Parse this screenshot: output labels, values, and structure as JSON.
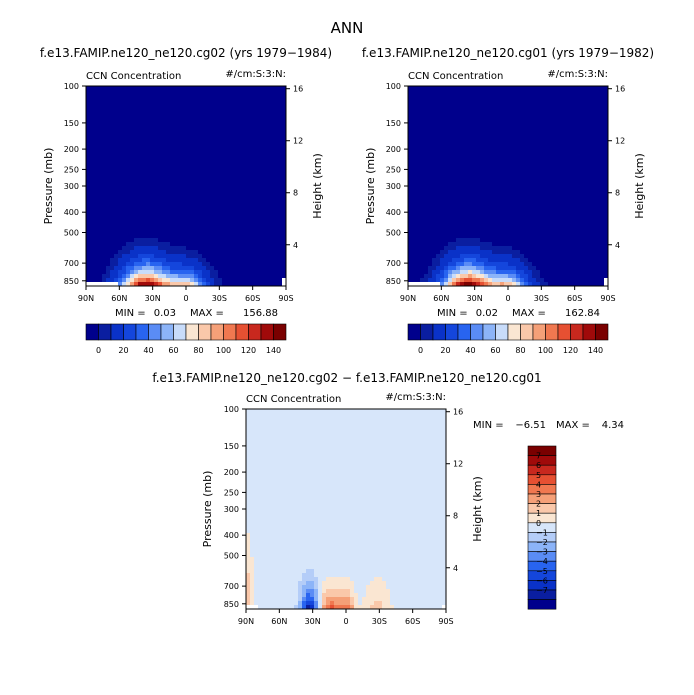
{
  "main_title": "ANN",
  "chart_data": [
    {
      "type": "heatmap",
      "title": "f.e13.FAMIP.ne120_ne120.cg02 (yrs 1979−1984)",
      "subtitle_left": "CCN Concentration",
      "subtitle_right": "#/cm:S:3:N:",
      "xlabel": "",
      "ylabel": "Pressure (mb)",
      "ylabel_right": "Height (km)",
      "x_ticks": [
        "90N",
        "60N",
        "30N",
        "0",
        "30S",
        "60S",
        "90S"
      ],
      "y_ticks": [
        "100",
        "150",
        "200",
        "250",
        "300",
        "400",
        "500",
        "700",
        "850"
      ],
      "y_ticks_right": [
        "16",
        "12",
        "8",
        "4"
      ],
      "stats": {
        "min_label": "MIN =",
        "min": "0.03",
        "max_label": "MAX =",
        "max": "156.88"
      },
      "colorbar_ticks": [
        "0",
        "20",
        "40",
        "60",
        "80",
        "100",
        "120",
        "140"
      ],
      "field": {
        "peak_value": 156.88,
        "peak_lat": 38
      }
    },
    {
      "type": "heatmap",
      "title": "f.e13.FAMIP.ne120_ne120.cg01 (yrs 1979−1982)",
      "subtitle_left": "CCN Concentration",
      "subtitle_right": "#/cm:S:3:N:",
      "xlabel": "",
      "ylabel": "Pressure (mb)",
      "ylabel_right": "Height (km)",
      "x_ticks": [
        "90N",
        "60N",
        "30N",
        "0",
        "30S",
        "60S",
        "90S"
      ],
      "y_ticks": [
        "100",
        "150",
        "200",
        "250",
        "300",
        "400",
        "500",
        "700",
        "850"
      ],
      "y_ticks_right": [
        "16",
        "12",
        "8",
        "4"
      ],
      "stats": {
        "min_label": "MIN =",
        "min": "0.02",
        "max_label": "MAX =",
        "max": "162.84"
      },
      "colorbar_ticks": [
        "0",
        "20",
        "40",
        "60",
        "80",
        "100",
        "120",
        "140"
      ],
      "field": {
        "peak_value": 162.84,
        "peak_lat": 38
      }
    },
    {
      "type": "heatmap",
      "title": "f.e13.FAMIP.ne120_ne120.cg02 − f.e13.FAMIP.ne120_ne120.cg01",
      "subtitle_left": "CCN Concentration",
      "subtitle_right": "#/cm:S:3:N:",
      "xlabel": "",
      "ylabel": "Pressure (mb)",
      "ylabel_right": "Height (km)",
      "x_ticks": [
        "90N",
        "60N",
        "30N",
        "0",
        "30S",
        "60S",
        "90S"
      ],
      "y_ticks": [
        "100",
        "150",
        "200",
        "250",
        "300",
        "400",
        "500",
        "700",
        "850"
      ],
      "y_ticks_right": [
        "16",
        "12",
        "8",
        "4"
      ],
      "stats": {
        "min_label": "MIN =",
        "min": "−6.51",
        "max_label": "MAX =",
        "max": "4.34"
      },
      "colorbar_ticks": [
        "7",
        "6",
        "5",
        "4",
        "3",
        "2",
        "1",
        "0",
        "−1",
        "−2",
        "−3",
        "−4",
        "−5",
        "−6",
        "−7"
      ],
      "field": {
        "min_value": -6.51,
        "max_value": 4.34
      }
    }
  ],
  "colors": {
    "abs_colormap": [
      "#00008c",
      "#0a1ea0",
      "#0a32c8",
      "#1446dc",
      "#2864f0",
      "#5a8cf5",
      "#8cb4f8",
      "#c8dcfa",
      "#fae6d2",
      "#fac8aa",
      "#f5a078",
      "#f07850",
      "#e65032",
      "#c8281e",
      "#a00a0a",
      "#7a0000"
    ],
    "diff_colormap": [
      "#00008c",
      "#0a1ea0",
      "#0a32c8",
      "#1446dc",
      "#2864f0",
      "#5a8cf5",
      "#8cb4f8",
      "#b4cdf8",
      "#d7e6fa",
      "#fae6d2",
      "#fac8aa",
      "#f5a078",
      "#f07850",
      "#e65032",
      "#c8281e",
      "#a00a0a",
      "#7a0000"
    ]
  }
}
